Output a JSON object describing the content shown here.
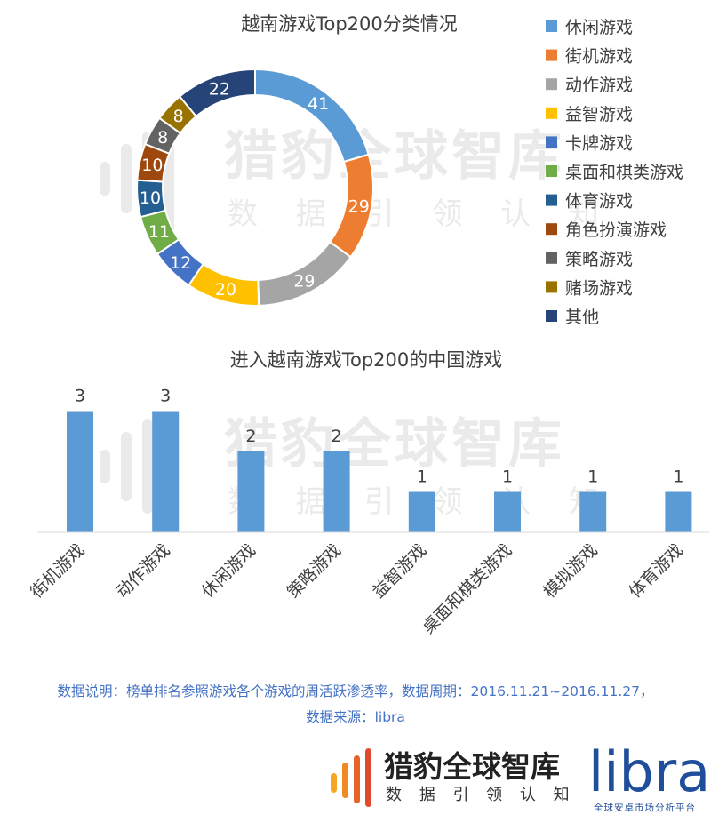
{
  "watermark": {
    "title": "猎豹全球智库",
    "subtitle": "数 据 引 领 认 知"
  },
  "chart_data": [
    {
      "type": "pie",
      "variant": "donut",
      "title": "越南游戏Top200分类情况",
      "categories": [
        "休闲游戏",
        "街机游戏",
        "动作游戏",
        "益智游戏",
        "卡牌游戏",
        "桌面和棋类游戏",
        "体育游戏",
        "角色扮演游戏",
        "策略游戏",
        "赌场游戏",
        "其他"
      ],
      "values": [
        41,
        29,
        29,
        20,
        12,
        11,
        10,
        10,
        8,
        8,
        22
      ],
      "colors": [
        "#5b9bd5",
        "#ed7d31",
        "#a5a5a5",
        "#ffc000",
        "#4472c4",
        "#70ad47",
        "#255e91",
        "#9e480e",
        "#636363",
        "#997300",
        "#264478"
      ],
      "legend_position": "right"
    },
    {
      "type": "bar",
      "title": "进入越南游戏Top200的中国游戏",
      "categories": [
        "街机游戏",
        "动作游戏",
        "休闲游戏",
        "策略游戏",
        "益智游戏",
        "桌面和棋类游戏",
        "模拟游戏",
        "体育游戏"
      ],
      "values": [
        3,
        3,
        2,
        2,
        1,
        1,
        1,
        1
      ],
      "color": "#5b9bd5",
      "ylim": [
        0,
        3
      ],
      "grid": false,
      "xlabel": "",
      "ylabel": ""
    }
  ],
  "note": {
    "line1": "数据说明：榜单排名参照游戏各个游戏的周活跃渗透率，数据周期：2016.11.21~2016.11.27，",
    "line2": "数据来源：libra"
  },
  "footer": {
    "cheetah_title": "猎豹全球智库",
    "cheetah_subtitle": "数 据 引 领 认 知",
    "libra_name": "libra",
    "libra_tagline": "全球安卓市场分析平台"
  }
}
